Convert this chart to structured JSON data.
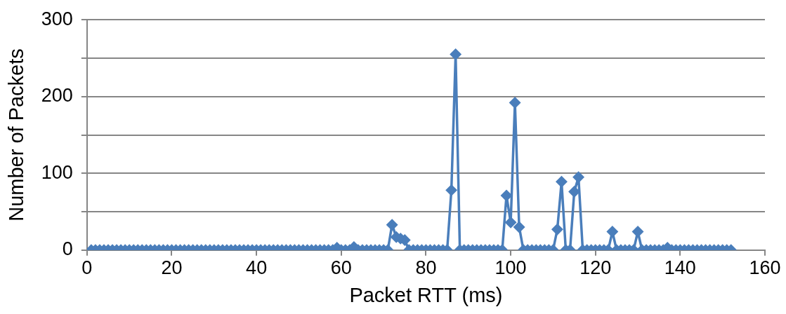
{
  "chart_data": {
    "type": "line",
    "xlabel": "Packet RTT (ms)",
    "ylabel": "Number of Packets",
    "x": [
      1,
      2,
      3,
      4,
      5,
      6,
      7,
      8,
      9,
      10,
      11,
      12,
      13,
      14,
      15,
      16,
      17,
      18,
      19,
      20,
      21,
      22,
      23,
      24,
      25,
      26,
      27,
      28,
      29,
      30,
      31,
      32,
      33,
      34,
      35,
      36,
      37,
      38,
      39,
      40,
      41,
      42,
      43,
      44,
      45,
      46,
      47,
      48,
      49,
      50,
      51,
      52,
      53,
      54,
      55,
      56,
      57,
      58,
      59,
      60,
      61,
      62,
      63,
      64,
      65,
      66,
      67,
      68,
      69,
      70,
      71,
      72,
      73,
      74,
      75,
      76,
      77,
      78,
      79,
      80,
      81,
      82,
      83,
      84,
      85,
      86,
      87,
      88,
      89,
      90,
      91,
      92,
      93,
      94,
      95,
      96,
      97,
      98,
      99,
      100,
      101,
      102,
      103,
      104,
      105,
      106,
      107,
      108,
      109,
      110,
      111,
      112,
      113,
      114,
      115,
      116,
      117,
      118,
      119,
      120,
      121,
      122,
      123,
      124,
      125,
      126,
      127,
      128,
      129,
      130,
      131,
      132,
      133,
      134,
      135,
      136,
      137,
      138,
      139,
      140,
      141,
      142,
      143,
      144,
      145,
      146,
      147,
      148,
      149,
      150,
      151,
      152
    ],
    "series": [
      {
        "color": "#4a7ebb",
        "values": [
          0,
          0,
          0,
          0,
          0,
          0,
          0,
          0,
          0,
          0,
          0,
          0,
          0,
          0,
          0,
          0,
          0,
          0,
          0,
          0,
          0,
          0,
          0,
          0,
          0,
          0,
          0,
          0,
          0,
          0,
          0,
          0,
          0,
          0,
          0,
          0,
          0,
          0,
          0,
          0,
          0,
          0,
          0,
          0,
          0,
          0,
          0,
          0,
          0,
          0,
          0,
          0,
          0,
          0,
          0,
          0,
          0,
          0,
          3,
          0,
          0,
          0,
          4,
          0,
          0,
          0,
          0,
          0,
          0,
          0,
          0,
          33,
          17,
          15,
          13,
          0,
          0,
          0,
          0,
          0,
          0,
          0,
          0,
          0,
          0,
          78,
          255,
          0,
          0,
          0,
          0,
          0,
          0,
          0,
          0,
          0,
          0,
          0,
          71,
          36,
          192,
          30,
          0,
          0,
          0,
          0,
          0,
          0,
          0,
          0,
          27,
          89,
          0,
          0,
          76,
          95,
          0,
          0,
          0,
          0,
          0,
          0,
          0,
          24,
          0,
          0,
          0,
          0,
          0,
          24,
          0,
          0,
          0,
          0,
          0,
          0,
          3,
          0,
          0,
          0,
          0,
          0,
          0,
          0,
          0,
          0,
          0,
          0,
          0,
          0,
          0,
          0
        ]
      }
    ],
    "xlim": [
      0,
      160
    ],
    "xticks": [
      0,
      20,
      40,
      60,
      80,
      100,
      120,
      140,
      160
    ],
    "ylim": [
      0,
      300
    ],
    "yticks": [
      0,
      {
        "value": 50,
        "label": null
      },
      100,
      {
        "value": 150,
        "label": null
      },
      200,
      {
        "value": 250,
        "label": null
      },
      300
    ],
    "grid": "y",
    "legend": false,
    "marker": "diamond",
    "line_style": "solid"
  }
}
